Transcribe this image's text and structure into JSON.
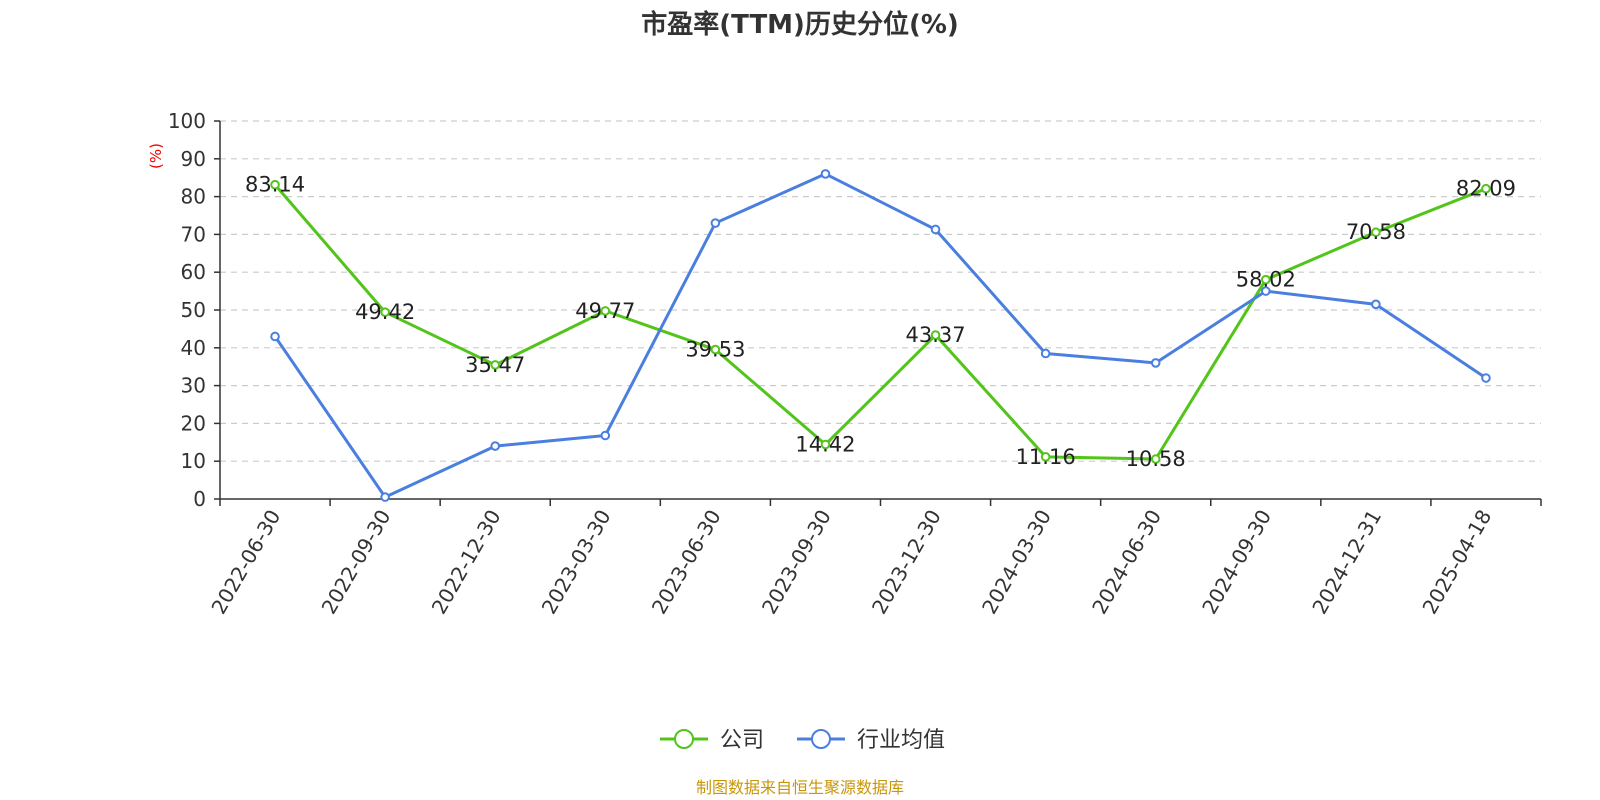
{
  "colors": {
    "company": "#52c41a",
    "industry": "#4a7fe0",
    "grid": "#cccccc",
    "axis": "#333333",
    "unit": "#ee0000",
    "source": "#c8960a"
  },
  "source": "制图数据来自恒生聚源数据库",
  "chart_data": {
    "type": "line",
    "title": "市盈率(TTM)历史分位(%)",
    "unit_label": "(%)",
    "ylim": [
      0,
      100
    ],
    "y_ticks": [
      0,
      10,
      20,
      30,
      40,
      50,
      60,
      70,
      80,
      90,
      100
    ],
    "grid": "horizontal-dashed",
    "legend_position": "bottom-center",
    "categories": [
      "2022-06-30",
      "2022-09-30",
      "2022-12-30",
      "2023-03-30",
      "2023-06-30",
      "2023-09-30",
      "2023-12-30",
      "2024-03-30",
      "2024-06-30",
      "2024-09-30",
      "2024-12-31",
      "2025-04-18"
    ],
    "series": [
      {
        "name": "公司",
        "color": "#52c41a",
        "show_labels": true,
        "values": [
          83.14,
          49.42,
          35.47,
          49.77,
          39.53,
          14.42,
          43.37,
          11.16,
          10.58,
          58.02,
          70.58,
          82.09
        ],
        "labels": [
          "83.14",
          "49.42",
          "35.47",
          "49.77",
          "39.53",
          "14.42",
          "43.37",
          "11.16",
          "10.58",
          "58.02",
          "70.58",
          "82.09"
        ]
      },
      {
        "name": "行业均值",
        "color": "#4a7fe0",
        "show_labels": false,
        "values": [
          43,
          0.5,
          14,
          16.8,
          73,
          86,
          71.3,
          38.5,
          36,
          55,
          51.5,
          32
        ]
      }
    ]
  }
}
